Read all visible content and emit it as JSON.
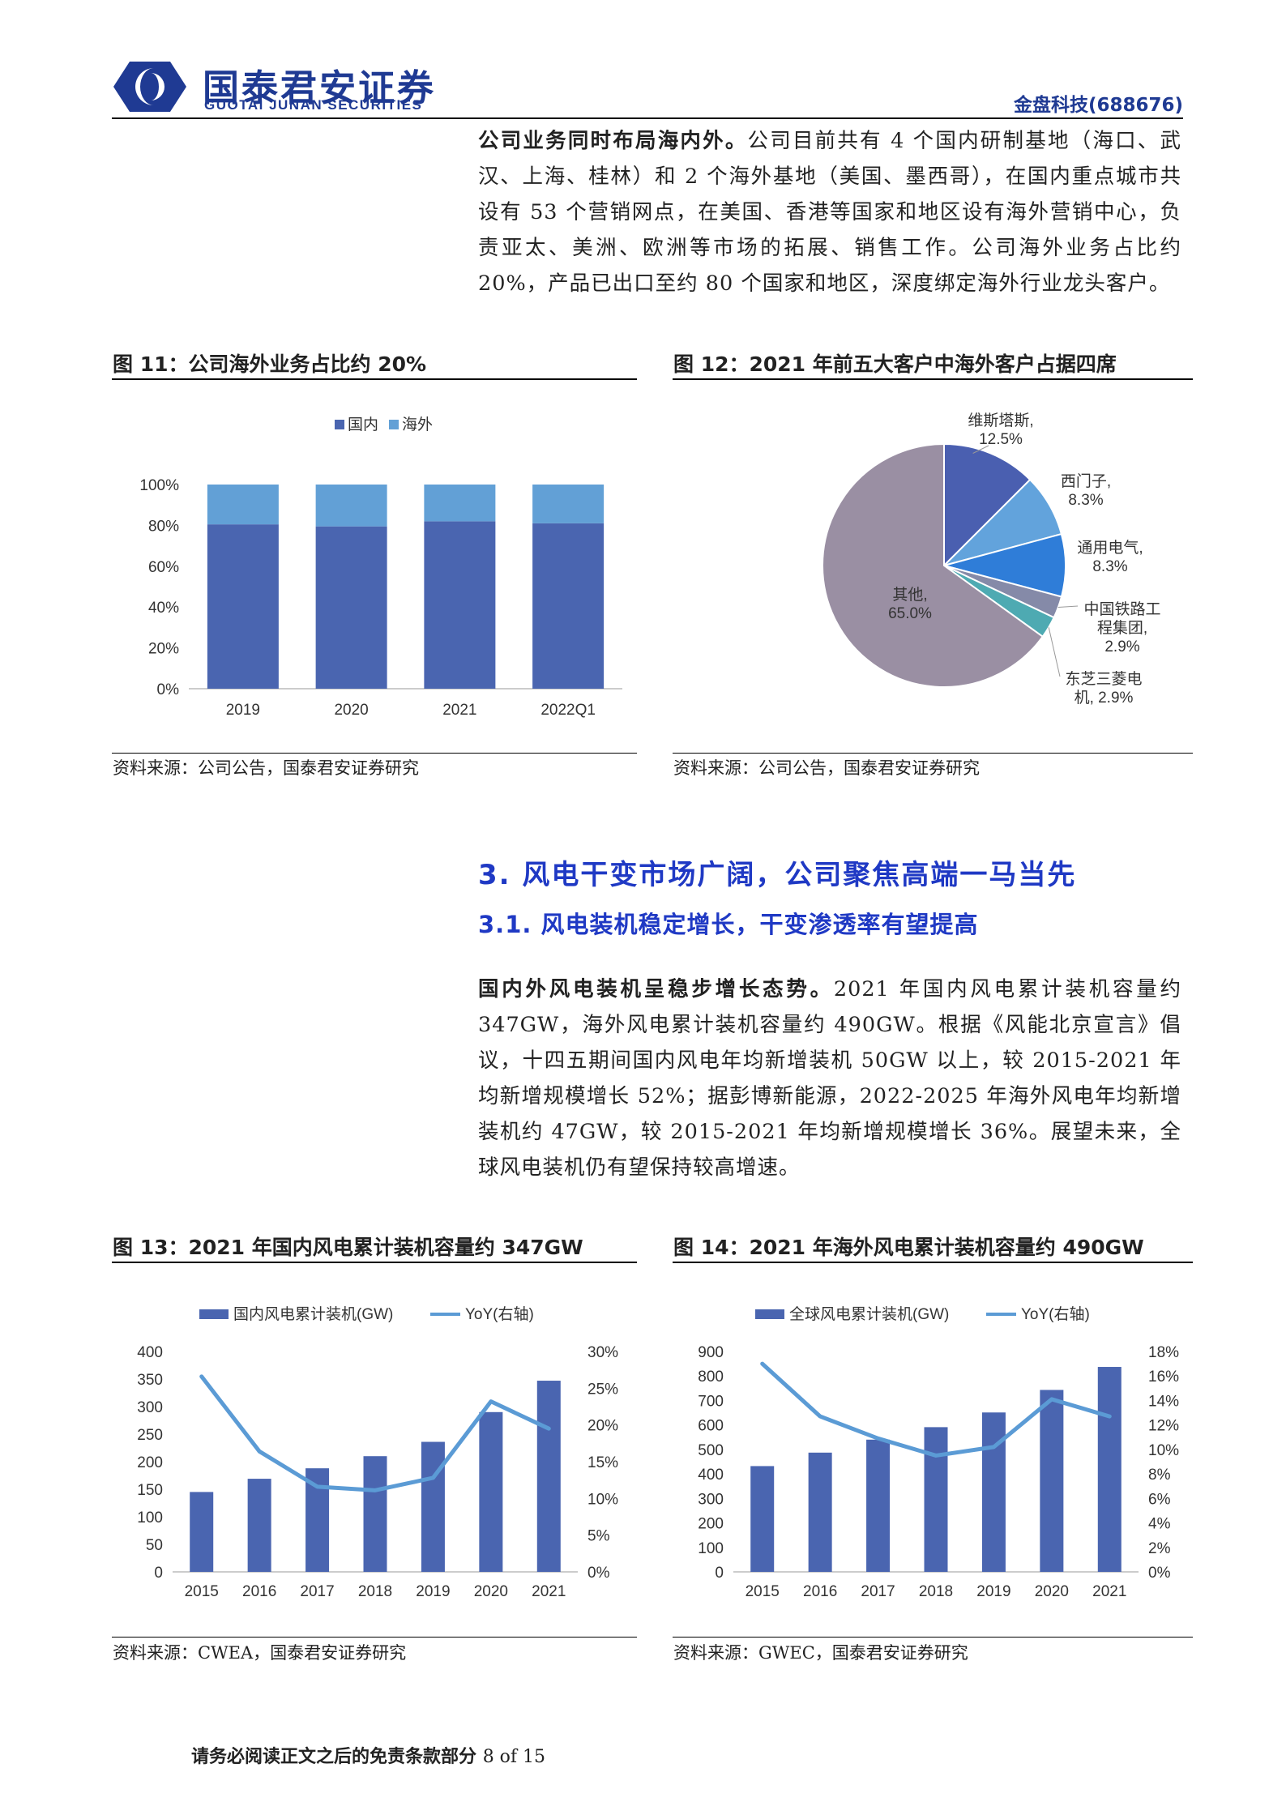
{
  "header": {
    "logo_cn": "国泰君安证券",
    "logo_en": "GUOTAI JUNAN SECURITIES",
    "company": "金盘科技(688676)"
  },
  "para1": {
    "lead": "公司业务同时布局海内外。",
    "body": "公司目前共有 4 个国内研制基地（海口、武汉、上海、桂林）和 2 个海外基地（美国、墨西哥），在国内重点城市共设有 53 个营销网点，在美国、香港等国家和地区设有海外营销中心，负责亚太、美洲、欧洲等市场的拓展、销售工作。公司海外业务占比约 20%，产品已出口至约 80 个国家和地区，深度绑定海外行业龙头客户。"
  },
  "fig11": {
    "title": "图 11：公司海外业务占比约 20%",
    "source": "资料来源：公司公告，国泰君安证券研究"
  },
  "fig12": {
    "title": "图 12：2021 年前五大客户中海外客户占据四席",
    "source": "资料来源：公司公告，国泰君安证券研究"
  },
  "section3": {
    "h1": "3.  风电干变市场广阔，公司聚焦高端一马当先",
    "h2": "3.1.  风电装机稳定增长，干变渗透率有望提高"
  },
  "para2": {
    "lead": "国内外风电装机呈稳步增长态势。",
    "body": "2021 年国内风电累计装机容量约 347GW，海外风电累计装机容量约 490GW。根据《风能北京宣言》倡议，十四五期间国内风电年均新增装机 50GW 以上，较 2015-2021 年均新增规模增长 52%；据彭博新能源，2022-2025 年海外风电年均新增装机约 47GW，较 2015-2021 年均新增规模增长 36%。展望未来，全球风电装机仍有望保持较高增速。"
  },
  "fig13": {
    "title": "图 13：2021 年国内风电累计装机容量约 347GW",
    "source": "资料来源：CWEA，国泰君安证券研究"
  },
  "fig14": {
    "title": "图 14：2021 年海外风电累计装机容量约 490GW",
    "source": "资料来源：GWEC，国泰君安证券研究"
  },
  "footer": {
    "text": "请务必阅读正文之后的免责条款部分",
    "page": "8 of 15"
  },
  "colors": {
    "dark_blue": "#4a65b0",
    "light_blue": "#62a0d6",
    "line_blue": "#5b9bd5",
    "heading_blue": "#1f39c4",
    "pie_other": "#9a8fa3"
  },
  "chart_data": [
    {
      "id": "fig11",
      "type": "bar",
      "stacked": true,
      "categories": [
        "2019",
        "2020",
        "2021",
        "2022Q1"
      ],
      "series": [
        {
          "name": "国内",
          "values": [
            80.5,
            79.5,
            82.0,
            81.0
          ]
        },
        {
          "name": "海外",
          "values": [
            19.5,
            20.5,
            18.0,
            19.0
          ]
        }
      ],
      "yticks": [
        "0%",
        "20%",
        "40%",
        "60%",
        "80%",
        "100%"
      ],
      "ylim": [
        0,
        100
      ],
      "legend": "top"
    },
    {
      "id": "fig12",
      "type": "pie",
      "slices": [
        {
          "label": "维斯塔斯,",
          "pct": "12.5%",
          "value": 12.5
        },
        {
          "label": "西门子,",
          "pct": "8.3%",
          "value": 8.3
        },
        {
          "label": "通用电气,",
          "pct": "8.3%",
          "value": 8.3
        },
        {
          "label": "中国铁路工程集团,",
          "pct": "2.9%",
          "value": 2.9
        },
        {
          "label": "东芝三菱电机,",
          "pct": "2.9%",
          "value": 2.9
        },
        {
          "label": "其他,",
          "pct": "65.0%",
          "value": 65.0
        }
      ]
    },
    {
      "id": "fig13",
      "type": "bar+line",
      "categories": [
        "2015",
        "2016",
        "2017",
        "2018",
        "2019",
        "2020",
        "2021"
      ],
      "bar_series": {
        "name": "国内风电累计装机(GW)",
        "values": [
          145,
          169,
          188,
          210,
          236,
          290,
          347
        ]
      },
      "line_series": {
        "name": "YoY(右轴)",
        "values": [
          26.6,
          16.4,
          11.6,
          11.1,
          12.8,
          23.2,
          19.5
        ]
      },
      "yticks_left": [
        "0",
        "50",
        "100",
        "150",
        "200",
        "250",
        "300",
        "350",
        "400"
      ],
      "yticks_right": [
        "0%",
        "5%",
        "10%",
        "15%",
        "20%",
        "25%",
        "30%"
      ],
      "ylim_left": [
        0,
        400
      ],
      "ylim_right": [
        0,
        30
      ],
      "legend": "top"
    },
    {
      "id": "fig14",
      "type": "bar+line",
      "categories": [
        "2015",
        "2016",
        "2017",
        "2018",
        "2019",
        "2020",
        "2021"
      ],
      "bar_series": {
        "name": "全球风电累计装机(GW)",
        "values": [
          432,
          487,
          540,
          591,
          651,
          743,
          837
        ]
      },
      "line_series": {
        "name": "YoY(右轴)",
        "values": [
          17.0,
          12.7,
          10.9,
          9.5,
          10.2,
          14.1,
          12.7
        ]
      },
      "yticks_left": [
        "0",
        "100",
        "200",
        "300",
        "400",
        "500",
        "600",
        "700",
        "800",
        "900"
      ],
      "yticks_right": [
        "0%",
        "2%",
        "4%",
        "6%",
        "8%",
        "10%",
        "12%",
        "14%",
        "16%",
        "18%"
      ],
      "ylim_left": [
        0,
        900
      ],
      "ylim_right": [
        0,
        18
      ],
      "legend": "top"
    }
  ]
}
